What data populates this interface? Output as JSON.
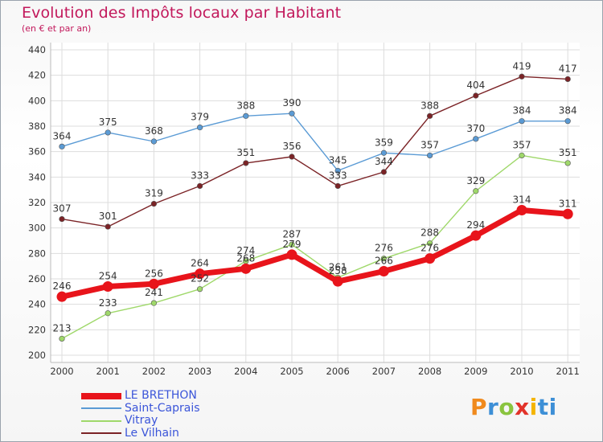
{
  "title": "Evolution des Impôts locaux par Habitant",
  "subtitle": "(en € et par an)",
  "logo": "Proxiti",
  "logo_letters": [
    "P",
    "r",
    "o",
    "x",
    "i",
    "ti"
  ],
  "chart_data": {
    "type": "line",
    "x": [
      "2000",
      "2001",
      "2002",
      "2003",
      "2004",
      "2005",
      "2006",
      "2007",
      "2008",
      "2009",
      "2010",
      "2011"
    ],
    "y_ticks": [
      "200",
      "220",
      "240",
      "260",
      "280",
      "300",
      "320",
      "340",
      "360",
      "380",
      "400",
      "420",
      "440"
    ],
    "ylim": [
      200,
      440
    ],
    "grid": true,
    "legend_position": "bottom-left",
    "series": [
      {
        "name": "LE BRETHON",
        "color": "#e8141b",
        "emphasis": true,
        "values": [
          246,
          254,
          256,
          264,
          268,
          279,
          258,
          266,
          276,
          294,
          314,
          311
        ],
        "labels": [
          "246",
          "254",
          "256",
          "264",
          "268",
          "279",
          "258",
          "266",
          "276",
          "294",
          "314",
          "311"
        ]
      },
      {
        "name": "Saint-Caprais",
        "color": "#5b9bd5",
        "emphasis": false,
        "values": [
          364,
          375,
          368,
          379,
          388,
          390,
          345,
          359,
          357,
          370,
          384,
          384
        ],
        "labels": [
          "364",
          "375",
          "368",
          "379",
          "388",
          "390",
          "345",
          "359",
          "357",
          "370",
          "384",
          "384"
        ]
      },
      {
        "name": "Vitray",
        "color": "#9fd86a",
        "emphasis": false,
        "values": [
          213,
          233,
          241,
          252,
          274,
          287,
          261,
          276,
          288,
          329,
          357,
          351
        ],
        "labels": [
          "213",
          "233",
          "241",
          "252",
          "274",
          "287",
          "261",
          "276",
          "288",
          "329",
          "357",
          "351"
        ]
      },
      {
        "name": "Le Vilhain",
        "color": "#7b2326",
        "emphasis": false,
        "values": [
          307,
          301,
          319,
          333,
          351,
          356,
          333,
          344,
          388,
          404,
          419,
          417
        ],
        "labels": [
          "307",
          "301",
          "319",
          "333",
          "351",
          "356",
          "333",
          "344",
          "388",
          "404",
          "419",
          "417"
        ]
      }
    ]
  }
}
